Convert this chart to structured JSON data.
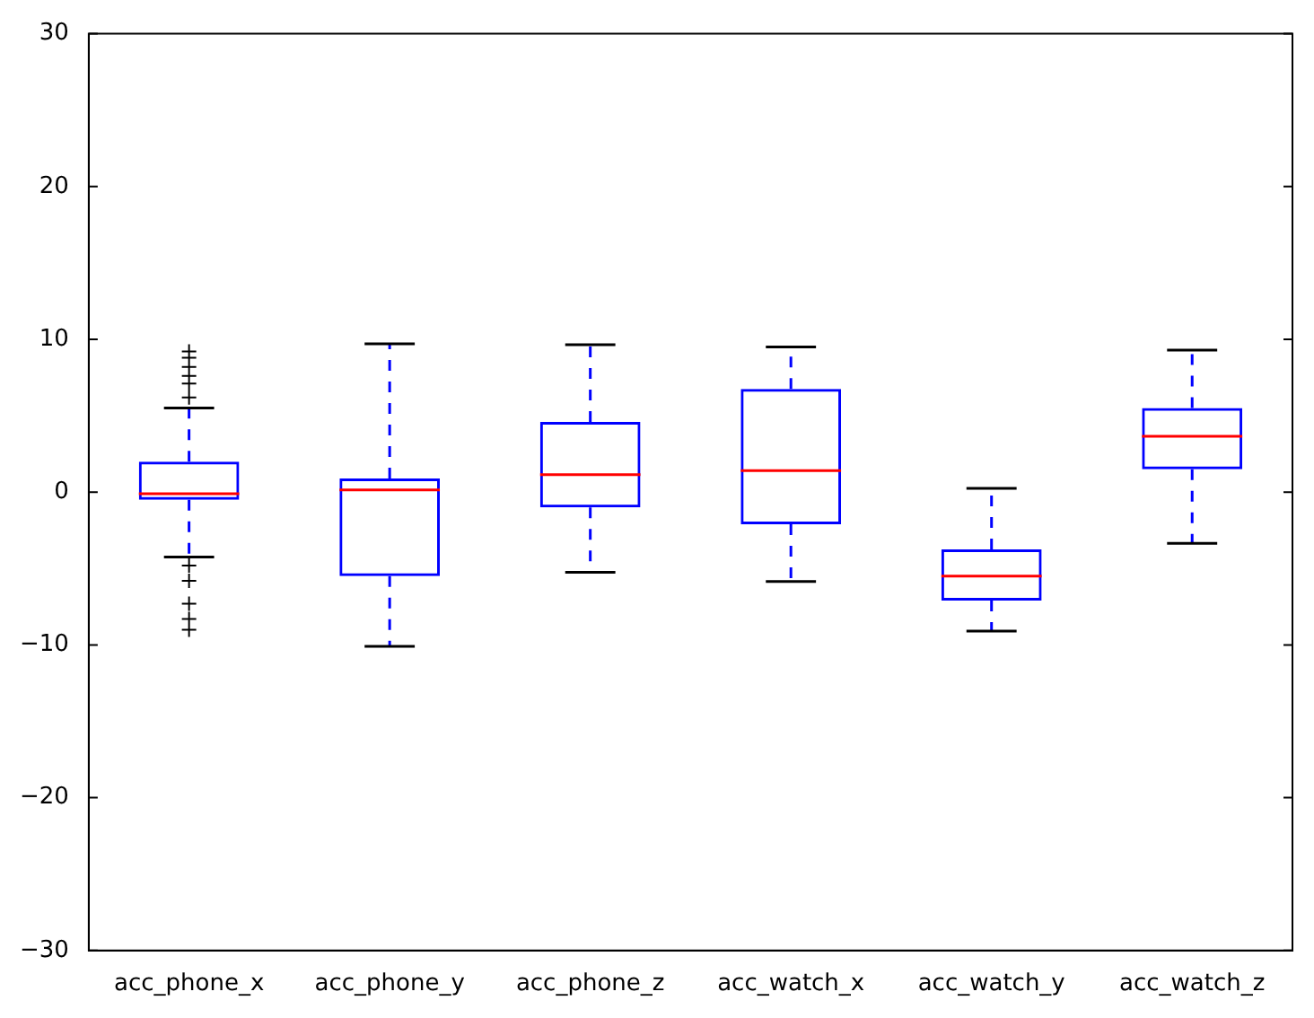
{
  "chart_data": {
    "type": "box",
    "categories": [
      "acc_phone_x",
      "acc_phone_y",
      "acc_phone_z",
      "acc_watch_x",
      "acc_watch_y",
      "acc_watch_z"
    ],
    "ylim": [
      -30,
      30
    ],
    "yticks": [
      {
        "value": -30,
        "label": "−30"
      },
      {
        "value": -20,
        "label": "−20"
      },
      {
        "value": -10,
        "label": "−10"
      },
      0,
      10,
      20,
      30
    ],
    "series": [
      {
        "color": "#0000ff",
        "boxes": [
          {
            "low": -4.25,
            "q1": -0.5,
            "median": -0.1,
            "q3": 2.0,
            "high": 5.5,
            "outliers": [
              6.2,
              7.1,
              7.6,
              8.2,
              8.8,
              9.2,
              -4.8,
              -5.8,
              -7.3,
              -8.3,
              -9.0
            ]
          },
          {
            "low": -10.1,
            "q1": -5.5,
            "median": 0.15,
            "q3": 0.9,
            "high": 9.7
          },
          {
            "low": -5.25,
            "q1": -1.0,
            "median": 1.15,
            "q3": 4.6,
            "high": 9.65
          },
          {
            "low": -5.85,
            "q1": -2.1,
            "median": 1.4,
            "q3": 6.75,
            "high": 9.5
          },
          {
            "low": -9.1,
            "q1": -7.1,
            "median": -5.5,
            "q3": -3.75,
            "high": 0.25
          },
          {
            "low": -3.35,
            "q1": 1.5,
            "median": 3.65,
            "q3": 5.5,
            "high": 9.3
          }
        ]
      }
    ]
  }
}
